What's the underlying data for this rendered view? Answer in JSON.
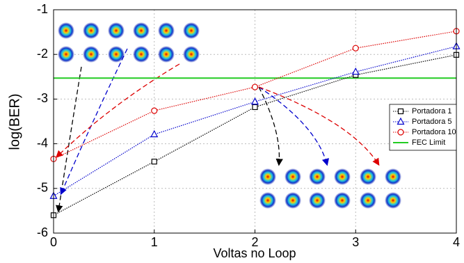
{
  "chart_data": {
    "type": "line",
    "x_label": "Voltas no Loop",
    "y_label": "log(BER)",
    "x": [
      0,
      1,
      2,
      3,
      4
    ],
    "xlim": [
      0,
      4
    ],
    "xticks": [
      0,
      1,
      2,
      3,
      4
    ],
    "ylim": [
      -6,
      -1
    ],
    "yticks": [
      -6,
      -5,
      -4,
      -3,
      -2,
      -1
    ],
    "grid": true,
    "legend": "right",
    "series": [
      {
        "name": "Portadora 1",
        "color": "#000000",
        "marker": "square",
        "values": [
          -5.6,
          -4.4,
          -3.18,
          -2.46,
          -2.01
        ]
      },
      {
        "name": "Portadora 5",
        "color": "#0000cc",
        "marker": "triangle",
        "values": [
          -5.17,
          -3.79,
          -3.06,
          -2.39,
          -1.82
        ]
      },
      {
        "name": "Portadora 10",
        "color": "#dd0000",
        "marker": "circle",
        "values": [
          -4.34,
          -3.26,
          -2.73,
          -1.86,
          -1.48
        ]
      }
    ],
    "reference_line": {
      "name": "FEC Limit",
      "color": "#22cc22",
      "value": -2.53
    }
  }
}
